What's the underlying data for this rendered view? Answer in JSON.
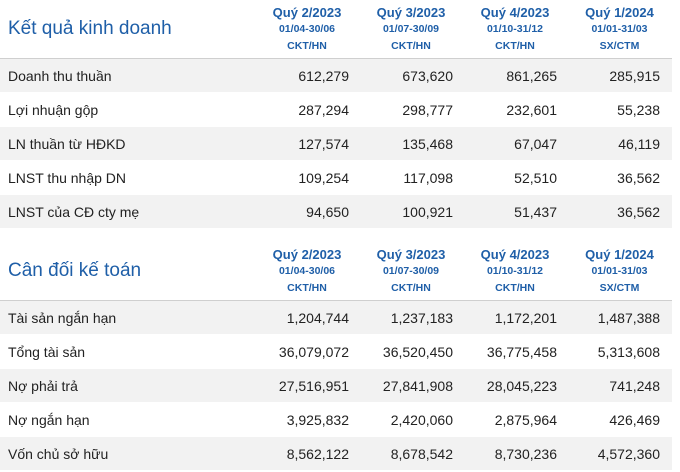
{
  "periods": [
    {
      "quarter": "Quý 2/2023",
      "range": "01/04-30/06",
      "std": "CKT/HN"
    },
    {
      "quarter": "Quý 3/2023",
      "range": "01/07-30/09",
      "std": "CKT/HN"
    },
    {
      "quarter": "Quý 4/2023",
      "range": "01/10-31/12",
      "std": "CKT/HN"
    },
    {
      "quarter": "Quý 1/2024",
      "range": "01/01-31/03",
      "std": "SX/CTM"
    }
  ],
  "business": {
    "title": "Kết quả kinh doanh",
    "rows": [
      {
        "label": "Doanh thu thuần",
        "values": [
          "612,279",
          "673,620",
          "861,265",
          "285,915"
        ]
      },
      {
        "label": "Lợi nhuận gộp",
        "values": [
          "287,294",
          "298,777",
          "232,601",
          "55,238"
        ]
      },
      {
        "label": "LN thuần từ HĐKD",
        "values": [
          "127,574",
          "135,468",
          "67,047",
          "46,119"
        ]
      },
      {
        "label": "LNST thu nhập DN",
        "values": [
          "109,254",
          "117,098",
          "52,510",
          "36,562"
        ]
      },
      {
        "label": "LNST của CĐ cty mẹ",
        "values": [
          "94,650",
          "100,921",
          "51,437",
          "36,562"
        ]
      }
    ]
  },
  "balance": {
    "title": "Cân đối kế toán",
    "rows": [
      {
        "label": "Tài sản ngắn hạn",
        "values": [
          "1,204,744",
          "1,237,183",
          "1,172,201",
          "1,487,388"
        ]
      },
      {
        "label": "Tổng tài sản",
        "values": [
          "36,079,072",
          "36,520,450",
          "36,775,458",
          "5,313,608"
        ]
      },
      {
        "label": "Nợ phải trả",
        "values": [
          "27,516,951",
          "27,841,908",
          "28,045,223",
          "741,248"
        ]
      },
      {
        "label": "Nợ ngắn hạn",
        "values": [
          "3,925,832",
          "2,420,060",
          "2,875,964",
          "426,469"
        ]
      },
      {
        "label": "Vốn chủ sở hữu",
        "values": [
          "8,562,122",
          "8,678,542",
          "8,730,236",
          "4,572,360"
        ]
      }
    ]
  }
}
